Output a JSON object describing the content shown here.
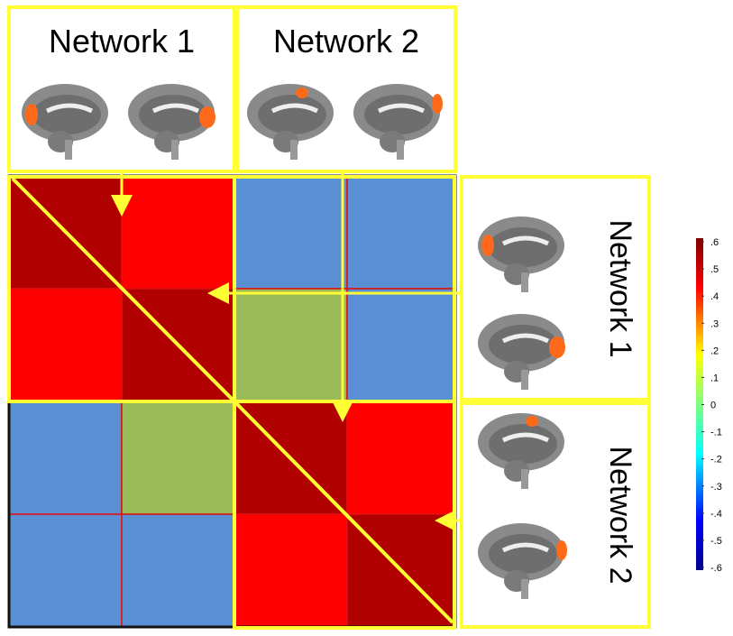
{
  "header": {
    "labels": [
      "Network 1",
      "Network 2"
    ]
  },
  "side": {
    "labels": [
      "Network 1",
      "Network 2"
    ]
  },
  "matrix": {
    "colors": [
      [
        "#b00000",
        "#ff0000",
        "#5b8fd4",
        "#5b8fd4"
      ],
      [
        "#ff0000",
        "#b00000",
        "#9bbb59",
        "#5b8fd4"
      ],
      [
        "#5b8fd4",
        "#9bbb59",
        "#b00000",
        "#ff0000"
      ],
      [
        "#5b8fd4",
        "#5b8fd4",
        "#ff0000",
        "#b00000"
      ]
    ]
  },
  "colorbar": {
    "lim": [
      -0.6,
      0.6
    ],
    "ticks": [
      {
        "value": 0.6,
        "label": ".6"
      },
      {
        "value": 0.5,
        "label": ".5"
      },
      {
        "value": 0.4,
        "label": ".4"
      },
      {
        "value": 0.3,
        "label": ".3"
      },
      {
        "value": 0.2,
        "label": ".2"
      },
      {
        "value": 0.1,
        "label": ".1"
      },
      0,
      {
        "value": -0.1,
        "label": "-.1"
      },
      {
        "value": -0.2,
        "label": "-.2"
      },
      {
        "value": -0.3,
        "label": "-.3"
      },
      {
        "value": -0.4,
        "label": "-.4"
      },
      {
        "value": -0.5,
        "label": "-.5"
      },
      {
        "value": -0.6,
        "label": "-.6"
      }
    ]
  }
}
